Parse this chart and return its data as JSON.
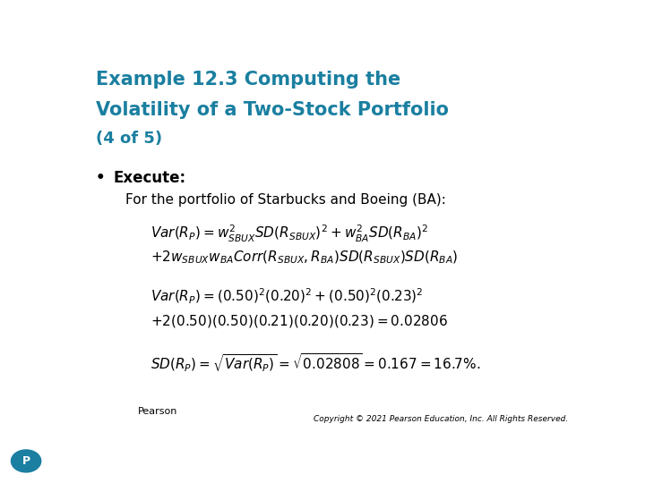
{
  "title_line1": "Example 12.3 Computing the",
  "title_line2": "Volatility of a Two-Stock Portfolio",
  "subtitle": "(4 of 5)",
  "title_color": "#1a7fa0",
  "bg_color": "#ffffff",
  "bullet_label": "Execute:",
  "intro_text": "For the portfolio of Starbucks and Boeing (BA):",
  "footer": "Copyright © 2021 Pearson Education, Inc. All Rights Reserved.",
  "pearson_color": "#1a7fa0",
  "title_fs": 15,
  "subtitle_fs": 13,
  "bullet_fs": 12,
  "intro_fs": 11,
  "eq_fs": 11,
  "footer_fs": 6.5
}
